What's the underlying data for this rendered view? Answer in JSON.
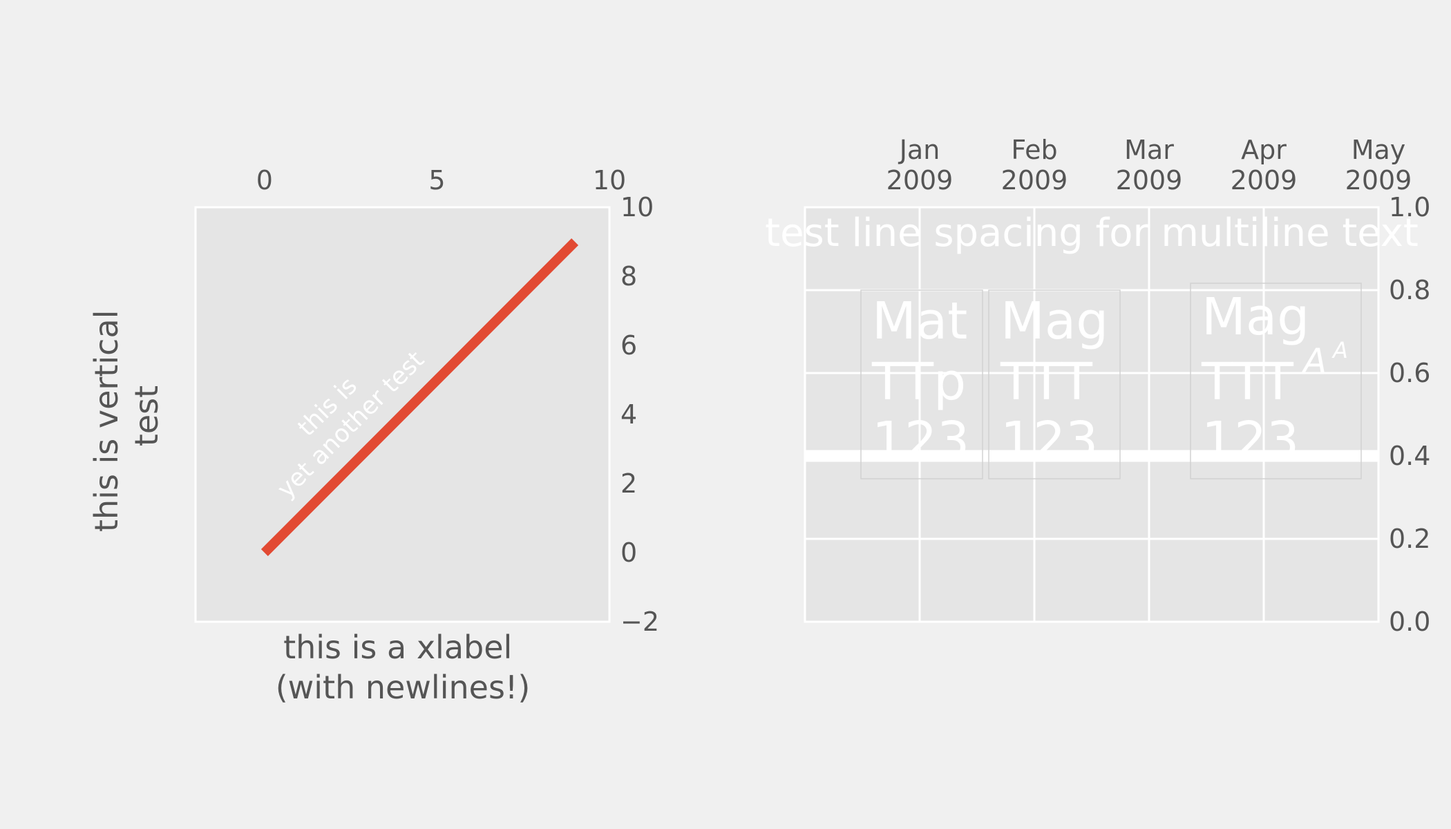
{
  "colors": {
    "figure_bg": "#f0f0f0",
    "axes_bg": "#e5e5e5",
    "grid": "#ffffff",
    "tick_text": "#555555",
    "line": "#e24a33",
    "overlay_text": "#ffffff"
  },
  "chart_data": [
    {
      "type": "line",
      "x": [
        0,
        1,
        2,
        3,
        4,
        5,
        6,
        7,
        8,
        9
      ],
      "y": [
        0,
        1,
        2,
        3,
        4,
        5,
        6,
        7,
        8,
        9
      ],
      "xlim": [
        -2,
        10
      ],
      "ylim": [
        -2,
        10
      ],
      "xticks": [
        "0",
        "5",
        "10"
      ],
      "xtick_values": [
        0,
        5,
        10
      ],
      "yticks": [
        "−2",
        "0",
        "2",
        "4",
        "6",
        "8",
        "10"
      ],
      "ytick_values": [
        -2,
        0,
        2,
        4,
        6,
        8,
        10
      ],
      "x_axis_position": "top",
      "y_axis_position": "right",
      "xlabel_lines": [
        "this is a xlabel",
        "(with newlines!)"
      ],
      "ylabel_lines": [
        "this is vertical",
        "test"
      ],
      "annotation_lines": [
        "this is",
        "yet another test"
      ],
      "annotation_rotation_deg": 45,
      "annotation_anchor": [
        4,
        4
      ],
      "grid": false
    },
    {
      "type": "line",
      "x_axis": "date",
      "xlim": [
        "2008-12",
        "2009-05"
      ],
      "ylim": [
        0,
        1
      ],
      "xtick_labels": [
        [
          "Jan",
          "2009"
        ],
        [
          "Feb",
          "2009"
        ],
        [
          "Mar",
          "2009"
        ],
        [
          "Apr",
          "2009"
        ],
        [
          "May",
          "2009"
        ]
      ],
      "xtick_months": [
        "2009-01",
        "2009-02",
        "2009-03",
        "2009-04",
        "2009-05"
      ],
      "yticks": [
        "0.0",
        "0.2",
        "0.4",
        "0.6",
        "0.8",
        "1.0"
      ],
      "ytick_values": [
        0,
        0.2,
        0.4,
        0.6,
        0.8,
        1.0
      ],
      "x_axis_position": "top",
      "y_axis_position": "right",
      "series": [
        {
          "x": [
            "2008-12",
            "2009-05"
          ],
          "y": [
            0.4,
            0.4
          ],
          "color": "#ffffff"
        }
      ],
      "title": "test line spacing for multiline text",
      "text_boxes": [
        {
          "lines": [
            "Mat",
            "TTp",
            "123"
          ]
        },
        {
          "lines": [
            "Mag",
            "TTT",
            "123"
          ]
        },
        {
          "lines": [
            "Mag",
            "TTT",
            "123"
          ],
          "math_suffix": "A",
          "math_superscript": "A"
        }
      ],
      "grid": true
    }
  ]
}
